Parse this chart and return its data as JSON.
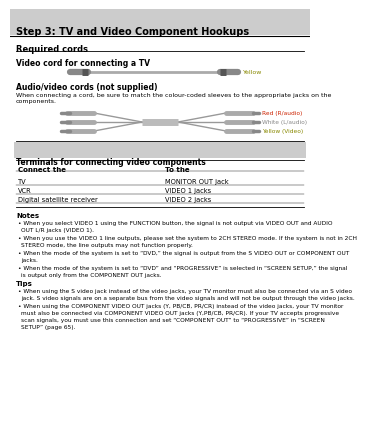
{
  "title": "Step 3: TV and Video Component Hookups",
  "bg_color": "#ffffff",
  "section1_header": "Required cords",
  "section2_header": "Video cord for connecting a TV",
  "section3_header": "Audio/video cords (not supplied)",
  "section3_text": "When connecting a cord, be sure to match the colour-coded sleeves to the appropriate jacks on the\ncomponents.",
  "cable1_label": "Yellow",
  "cable2_labels": [
    "Yellow (Video)",
    "White (L/audio)",
    "Red (R/audio)"
  ],
  "cable2_label_colors": [
    "#888800",
    "#888888",
    "#cc2200"
  ],
  "table_header": "Terminals for connecting video components",
  "table_cols": [
    "Connect the",
    "To the"
  ],
  "table_rows": [
    [
      "TV",
      "MONITOR OUT jack"
    ],
    [
      "VCR",
      "VIDEO 1 jacks"
    ],
    [
      "Digital satellite receiver",
      "VIDEO 2 jacks"
    ]
  ],
  "notes_header": "Notes",
  "notes": [
    "When you select VIDEO 1 using the FUNCTION button, the signal is not output via VIDEO OUT and AUDIO\nOUT L/R jacks (VIDEO 1).",
    "When you use the VIDEO 1 line outputs, please set the system to 2CH STEREO mode. If the system is not in 2CH\nSTEREO mode, the line outputs may not function properly.",
    "When the mode of the system is set to “DVD,” the signal is output from the S VIDEO OUT or COMPONENT OUT\njacks.",
    "When the mode of the system is set to “DVD” and “PROGRESSIVE” is selected in “SCREEN SETUP,” the signal\nis output only from the COMPONENT OUT jacks."
  ],
  "tips_header": "Tips",
  "tips": [
    "When using the S video jack instead of the video jacks, your TV monitor must also be connected via an S video\njack. S video signals are on a separate bus from the video signals and will not be output through the video jacks.",
    "When using the COMPONENT VIDEO OUT jacks (Y, PB/CB, PR/CR) instead of the video jacks, your TV monitor\nmust also be connected via COMPONENT VIDEO OUT jacks (Y,PB/CB, PR/CR). If your TV accepts progressive\nscan signals, you must use this connection and set “COMPONENT OUT” to “PROGRESSIVE” in “SCREEN\nSETUP” (page 65)."
  ]
}
